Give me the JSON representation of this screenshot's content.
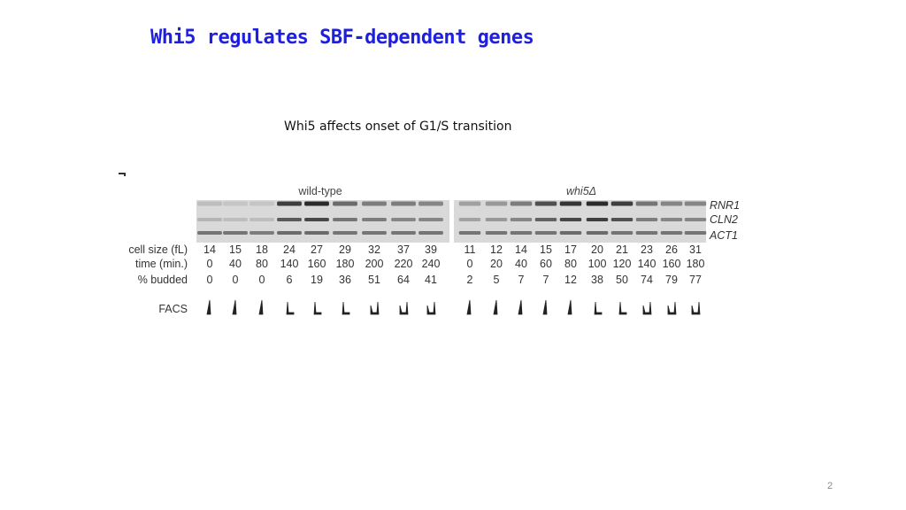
{
  "slide": {
    "title": "Whi5 regulates SBF-dependent genes",
    "subtitle": "Whi5 affects onset of G1/S transition",
    "page_number": "2"
  },
  "figure": {
    "groups": [
      {
        "label": "wild-type",
        "cell_size": [
          "14",
          "15",
          "18",
          "24",
          "27",
          "29",
          "32",
          "37",
          "39"
        ],
        "time": [
          "0",
          "40",
          "80",
          "140",
          "160",
          "180",
          "200",
          "220",
          "240"
        ],
        "budded": [
          "0",
          "0",
          "0",
          "6",
          "19",
          "36",
          "51",
          "64",
          "41"
        ],
        "rnr1": [
          0.15,
          0.1,
          0.1,
          0.85,
          0.95,
          0.6,
          0.5,
          0.5,
          0.45
        ],
        "cln2": [
          0.2,
          0.15,
          0.15,
          0.7,
          0.8,
          0.55,
          0.5,
          0.45,
          0.45
        ],
        "act1": [
          0.55,
          0.55,
          0.5,
          0.6,
          0.6,
          0.55,
          0.55,
          0.55,
          0.55
        ],
        "facs": [
          "1n",
          "1n",
          "1n",
          "1n2n",
          "1n2n",
          "1n2n",
          "2n",
          "2n",
          "2n"
        ]
      },
      {
        "label": "whi5Δ",
        "cell_size": [
          "11",
          "12",
          "14",
          "15",
          "17",
          "20",
          "21",
          "23",
          "26",
          "31"
        ],
        "time": [
          "0",
          "20",
          "40",
          "60",
          "80",
          "100",
          "120",
          "140",
          "160",
          "180"
        ],
        "budded": [
          "2",
          "5",
          "7",
          "7",
          "12",
          "38",
          "50",
          "74",
          "79",
          "77"
        ],
        "rnr1": [
          0.3,
          0.35,
          0.5,
          0.75,
          0.9,
          0.95,
          0.85,
          0.55,
          0.45,
          0.45
        ],
        "cln2": [
          0.3,
          0.35,
          0.45,
          0.65,
          0.8,
          0.85,
          0.75,
          0.5,
          0.45,
          0.45
        ],
        "act1": [
          0.55,
          0.55,
          0.55,
          0.55,
          0.6,
          0.6,
          0.55,
          0.55,
          0.55,
          0.55
        ],
        "facs": [
          "1n",
          "1n",
          "1n",
          "1n",
          "1n",
          "1n2n",
          "1n2n",
          "2n",
          "2n",
          "2n"
        ]
      }
    ],
    "row_labels": {
      "cell_size": "cell size (fL)",
      "time": "time (min.)",
      "budded": "% budded",
      "facs": "FACS"
    },
    "genes": [
      "RNR1",
      "CLN2",
      "ACT1"
    ],
    "colors": {
      "band": "#222222",
      "blot_bg": "#d9d9d9",
      "title": "#1f1fe0"
    }
  }
}
